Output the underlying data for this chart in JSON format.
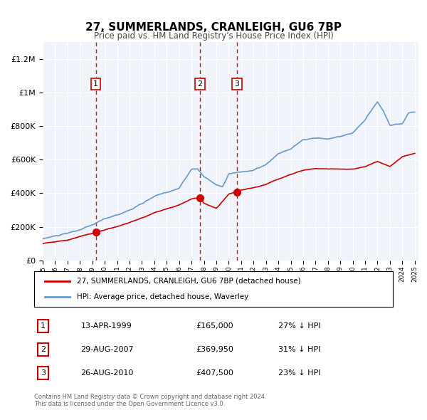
{
  "title": "27, SUMMERLANDS, CRANLEIGH, GU6 7BP",
  "subtitle": "Price paid vs. HM Land Registry's House Price Index (HPI)",
  "legend_line1": "27, SUMMERLANDS, CRANLEIGH, GU6 7BP (detached house)",
  "legend_line2": "HPI: Average price, detached house, Waverley",
  "sale_color": "#cc0000",
  "hpi_color": "#6699cc",
  "background_color": "#f0f4fa",
  "transactions": [
    {
      "label": "1",
      "date": "13-APR-1999",
      "price": 165000,
      "pct": "27%",
      "x_year": 1999.28
    },
    {
      "label": "2",
      "date": "29-AUG-2007",
      "price": 369950,
      "pct": "31%",
      "x_year": 2007.66
    },
    {
      "label": "3",
      "date": "26-AUG-2010",
      "price": 407500,
      "pct": "23%",
      "x_year": 2010.66
    }
  ],
  "ylabel_ticks": [
    "£0",
    "£200K",
    "£400K",
    "£600K",
    "£800K",
    "£1M",
    "£1.2M"
  ],
  "ytick_values": [
    0,
    200000,
    400000,
    600000,
    800000,
    1000000,
    1200000
  ],
  "ylim": [
    0,
    1300000
  ],
  "xlim_start": 1995.0,
  "xlim_end": 2025.3,
  "footer_line1": "Contains HM Land Registry data © Crown copyright and database right 2024.",
  "footer_line2": "This data is licensed under the Open Government Licence v3.0."
}
